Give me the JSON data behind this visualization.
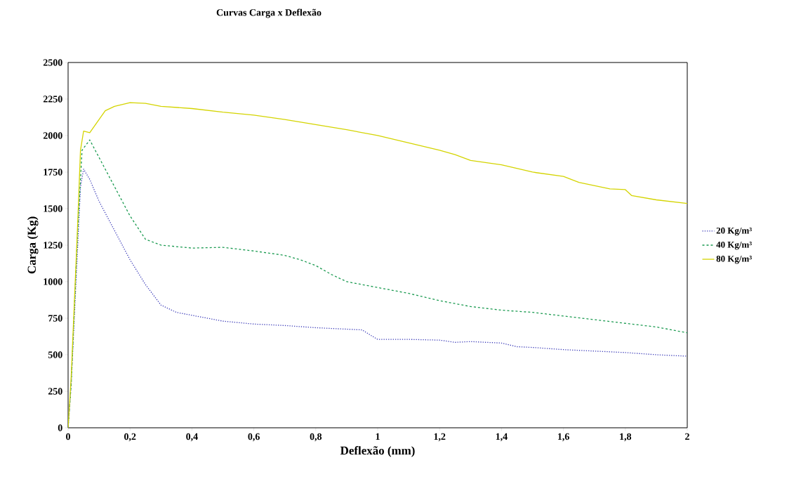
{
  "chart_data": {
    "type": "line",
    "title": "Curvas Carga x Deflexão",
    "xlabel": "Deflexão (mm)",
    "ylabel": "Carga (Kg)",
    "xlim": [
      0,
      2
    ],
    "ylim": [
      0,
      2500
    ],
    "xticks": [
      0,
      {
        "value": 0.2,
        "label": "0,2"
      },
      {
        "value": 0.4,
        "label": "0,4"
      },
      {
        "value": 0.6,
        "label": "0,6"
      },
      {
        "value": 0.8,
        "label": "0,8"
      },
      1,
      {
        "value": 1.2,
        "label": "1,2"
      },
      {
        "value": 1.4,
        "label": "1,4"
      },
      {
        "value": 1.6,
        "label": "1,6"
      },
      {
        "value": 1.8,
        "label": "1,8"
      },
      2
    ],
    "yticks": [
      0,
      250,
      500,
      750,
      1000,
      1250,
      1500,
      1750,
      2000,
      2250,
      2500
    ],
    "grid": false,
    "legend": "right",
    "marker": "none",
    "series": [
      {
        "name": "20 Kg/m³",
        "color": "#3b3bb8",
        "line_style": "dotted",
        "x": [
          0,
          0.01,
          0.02,
          0.03,
          0.04,
          0.05,
          0.07,
          0.1,
          0.15,
          0.2,
          0.25,
          0.3,
          0.35,
          0.4,
          0.5,
          0.6,
          0.7,
          0.8,
          0.9,
          0.95,
          0.98,
          1.0,
          1.1,
          1.2,
          1.25,
          1.3,
          1.4,
          1.45,
          1.5,
          1.6,
          1.7,
          1.8,
          1.9,
          2.0
        ],
        "values": [
          0,
          300,
          750,
          1200,
          1650,
          1770,
          1700,
          1550,
          1350,
          1150,
          980,
          840,
          790,
          770,
          730,
          710,
          700,
          685,
          675,
          670,
          630,
          605,
          605,
          600,
          585,
          590,
          580,
          555,
          550,
          535,
          525,
          515,
          500,
          490
        ]
      },
      {
        "name": "40 Kg/m³",
        "color": "#1a9a50",
        "line_style": "dashed",
        "x": [
          0,
          0.01,
          0.02,
          0.03,
          0.04,
          0.045,
          0.07,
          0.1,
          0.15,
          0.2,
          0.25,
          0.3,
          0.4,
          0.5,
          0.6,
          0.7,
          0.75,
          0.8,
          0.85,
          0.9,
          1.0,
          1.1,
          1.2,
          1.3,
          1.4,
          1.5,
          1.6,
          1.7,
          1.8,
          1.9,
          1.95,
          2.0
        ],
        "values": [
          0,
          300,
          800,
          1300,
          1700,
          1900,
          1970,
          1850,
          1650,
          1450,
          1290,
          1250,
          1230,
          1235,
          1210,
          1180,
          1150,
          1110,
          1050,
          1000,
          960,
          920,
          870,
          830,
          805,
          790,
          765,
          740,
          715,
          690,
          670,
          650
        ]
      },
      {
        "name": "80 Kg/m³",
        "color": "#d4d400",
        "line_style": "solid",
        "x": [
          0,
          0.01,
          0.02,
          0.03,
          0.04,
          0.05,
          0.07,
          0.09,
          0.12,
          0.15,
          0.2,
          0.25,
          0.3,
          0.4,
          0.5,
          0.6,
          0.7,
          0.8,
          0.9,
          1.0,
          1.1,
          1.2,
          1.25,
          1.3,
          1.4,
          1.5,
          1.6,
          1.65,
          1.75,
          1.8,
          1.82,
          1.9,
          2.0
        ],
        "values": [
          0,
          350,
          850,
          1350,
          1900,
          2030,
          2020,
          2080,
          2170,
          2200,
          2225,
          2220,
          2200,
          2185,
          2160,
          2140,
          2110,
          2075,
          2040,
          2000,
          1950,
          1900,
          1870,
          1830,
          1800,
          1750,
          1720,
          1680,
          1635,
          1630,
          1590,
          1560,
          1535
        ]
      }
    ]
  }
}
